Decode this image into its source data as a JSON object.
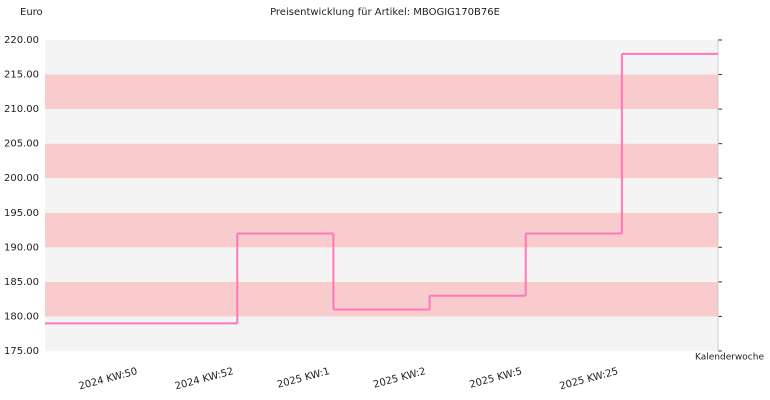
{
  "chart_data": {
    "type": "step",
    "title": "Preisentwicklung für Artikel: MBOGIG170B76E",
    "y_label": "Euro",
    "x_label": "Kalenderwoche",
    "categories": [
      "2024 KW:50",
      "2024 KW:52",
      "2025 KW:1",
      "2025 KW:2",
      "2025 KW:5",
      "2025 KW:25"
    ],
    "values": [
      179,
      192,
      181,
      183,
      192,
      218
    ],
    "color": "#ff77bb",
    "band_colors": [
      "#f4f4f4",
      "#f8cccc"
    ],
    "ylim": [
      175,
      220
    ],
    "yticks": [
      {
        "value": 175,
        "label": "175.00"
      },
      {
        "value": 180,
        "label": "180.00"
      },
      {
        "value": 185,
        "label": "185.00"
      },
      {
        "value": 190,
        "label": "190.00"
      },
      {
        "value": 195,
        "label": "195.00"
      },
      {
        "value": 200,
        "label": "200.00"
      },
      {
        "value": 205,
        "label": "205.00"
      },
      {
        "value": 210,
        "label": "210.00"
      },
      {
        "value": 215,
        "label": "215.00"
      },
      {
        "value": 220,
        "label": "220.00"
      }
    ]
  }
}
